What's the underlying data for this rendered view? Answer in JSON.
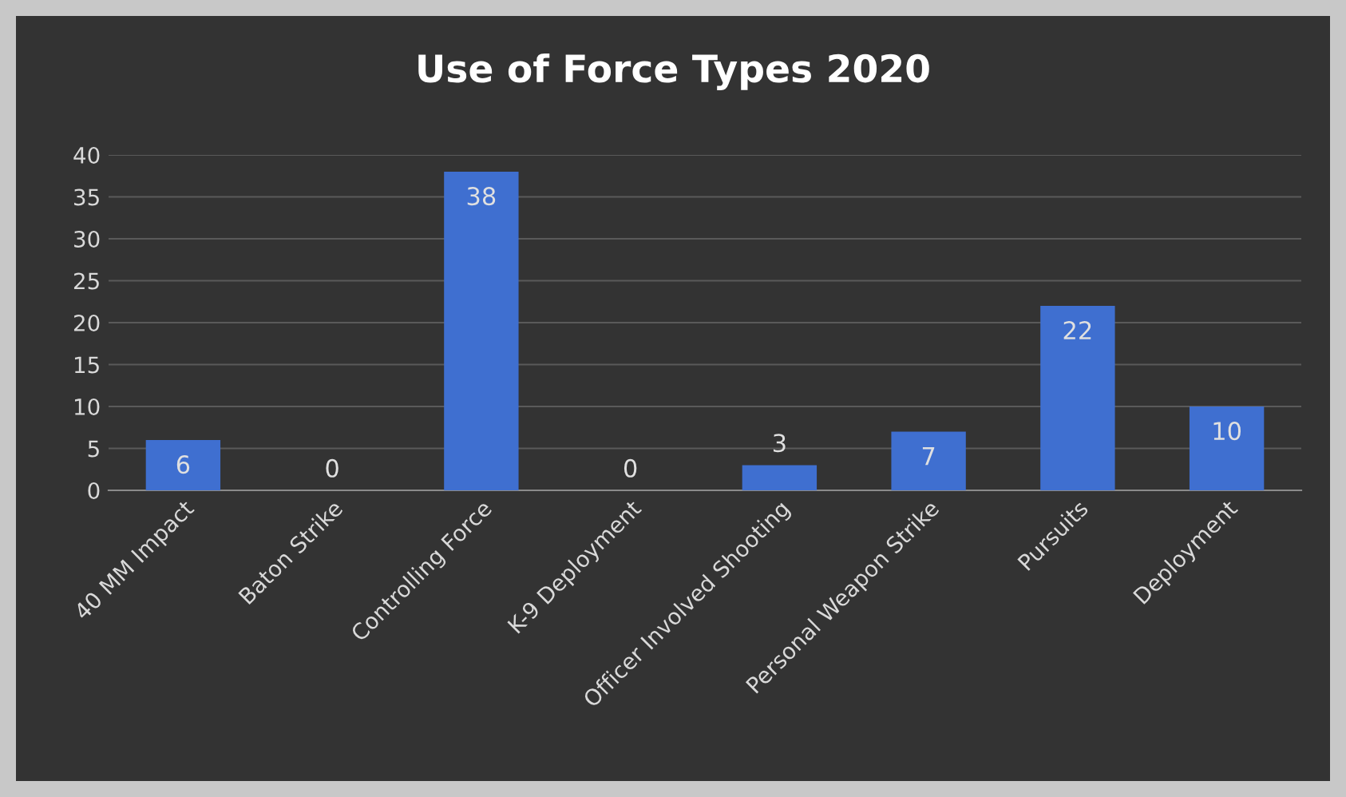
{
  "chart_data": {
    "type": "bar",
    "title": "Use of Force Types 2020",
    "categories": [
      "40 MM Impact",
      "Baton Strike",
      "Controlling Force",
      "K-9 Deployment",
      "Officer Involved Shooting",
      "Personal Weapon Strike",
      "Pursuits",
      "Deployment"
    ],
    "values": [
      6,
      0,
      38,
      0,
      3,
      7,
      22,
      10
    ],
    "color": "#3f6fd0",
    "ylim": [
      0,
      40
    ],
    "yticks": [
      0,
      5,
      10,
      15,
      20,
      25,
      30,
      35,
      40
    ],
    "grid": "y",
    "data_labels": true
  }
}
